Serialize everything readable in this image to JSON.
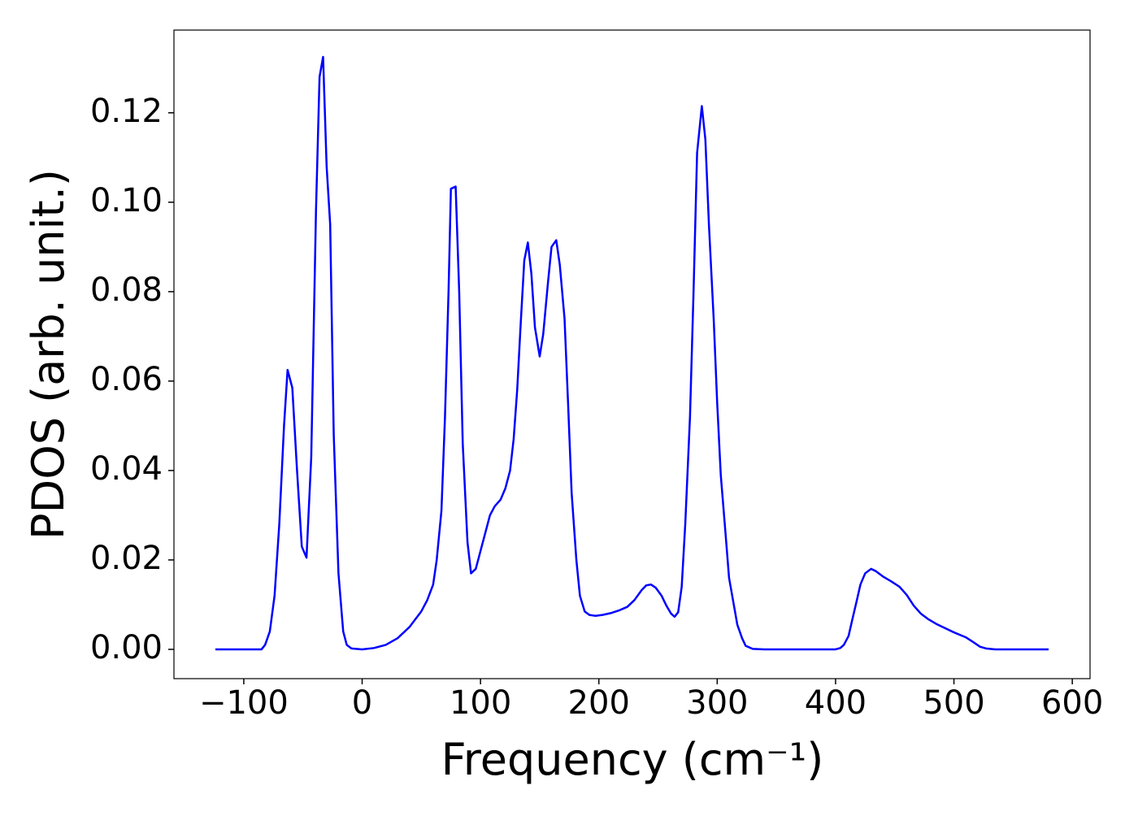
{
  "chart_data": {
    "type": "line",
    "xlabel": "Frequency (cm⁻¹)",
    "ylabel": "PDOS (arb. unit.)",
    "x": [
      -124,
      -85,
      -82,
      -78,
      -74,
      -70,
      -66,
      -63,
      -59,
      -55,
      -51,
      -47,
      -43,
      -39,
      -36,
      -33,
      -30,
      -27,
      -24,
      -20,
      -16,
      -13,
      -9,
      0,
      10,
      20,
      30,
      40,
      50,
      55,
      60,
      63,
      67,
      70,
      73,
      75,
      79,
      82,
      85,
      89,
      92,
      96,
      100,
      104,
      108,
      112,
      117,
      121,
      125,
      128,
      131,
      134,
      137,
      140,
      143,
      146,
      150,
      153,
      157,
      160,
      164,
      167,
      171,
      174,
      177,
      181,
      184,
      188,
      192,
      197,
      203,
      210,
      217,
      224,
      230,
      236,
      240,
      244,
      248,
      253,
      257,
      261,
      264,
      267,
      270,
      273,
      277,
      280,
      283,
      287,
      290,
      293,
      297,
      300,
      303,
      307,
      310,
      314,
      317,
      321,
      324,
      330,
      340,
      400,
      404,
      407,
      411,
      414,
      418,
      421,
      425,
      430,
      434,
      440,
      447,
      454,
      460,
      466,
      472,
      478,
      485,
      492,
      500,
      510,
      517,
      522,
      527,
      535,
      580
    ],
    "series": [
      {
        "name": "PDOS",
        "color": "#0000ff",
        "values": [
          0,
          0,
          0.001,
          0.004,
          0.012,
          0.028,
          0.05,
          0.0625,
          0.0585,
          0.04,
          0.023,
          0.0205,
          0.043,
          0.098,
          0.128,
          0.1325,
          0.108,
          0.095,
          0.048,
          0.017,
          0.004,
          0.001,
          0.0002,
          0,
          0.0003,
          0.001,
          0.0025,
          0.005,
          0.0085,
          0.011,
          0.0145,
          0.02,
          0.031,
          0.052,
          0.08,
          0.103,
          0.1035,
          0.08,
          0.046,
          0.024,
          0.017,
          0.018,
          0.022,
          0.026,
          0.03,
          0.032,
          0.0335,
          0.036,
          0.04,
          0.047,
          0.058,
          0.073,
          0.087,
          0.091,
          0.084,
          0.072,
          0.0655,
          0.0705,
          0.082,
          0.09,
          0.0915,
          0.086,
          0.074,
          0.055,
          0.035,
          0.02,
          0.012,
          0.0085,
          0.0077,
          0.0075,
          0.0077,
          0.0081,
          0.0087,
          0.0095,
          0.011,
          0.0132,
          0.0143,
          0.0145,
          0.0138,
          0.012,
          0.0098,
          0.008,
          0.0073,
          0.0083,
          0.014,
          0.028,
          0.052,
          0.08,
          0.111,
          0.1215,
          0.114,
          0.095,
          0.074,
          0.055,
          0.039,
          0.026,
          0.016,
          0.01,
          0.0055,
          0.0025,
          0.0008,
          0.0001,
          0,
          0,
          0.0003,
          0.001,
          0.003,
          0.0065,
          0.011,
          0.0145,
          0.017,
          0.018,
          0.0175,
          0.0163,
          0.0152,
          0.014,
          0.0122,
          0.0098,
          0.008,
          0.0068,
          0.0057,
          0.0048,
          0.0038,
          0.0027,
          0.0015,
          0.0006,
          0.0002,
          0,
          0
        ]
      }
    ],
    "xlim": [
      -159,
      615
    ],
    "xticks": [
      {
        "value": -100,
        "label": "−100"
      },
      0,
      100,
      200,
      300,
      400,
      500,
      600
    ],
    "ylim": [
      -0.00655,
      0.1385
    ],
    "yticks": [
      {
        "value": 0,
        "label": "0.00"
      },
      {
        "value": 0.02,
        "label": "0.02"
      },
      {
        "value": 0.04,
        "label": "0.04"
      },
      {
        "value": 0.06,
        "label": "0.06"
      },
      {
        "value": 0.08,
        "label": "0.08"
      },
      {
        "value": 0.1,
        "label": "0.10"
      },
      {
        "value": 0.12,
        "label": "0.12"
      }
    ],
    "grid": false
  }
}
